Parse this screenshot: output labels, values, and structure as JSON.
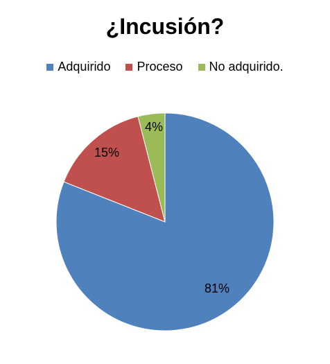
{
  "chart_data": {
    "type": "pie",
    "title": "¿Incusión?",
    "legend_position": "top",
    "categories": [
      "Adquirido",
      "Proceso",
      "No adquirido."
    ],
    "values": [
      81,
      15,
      4
    ],
    "labels": [
      "81%",
      "15%",
      "4%"
    ],
    "colors": [
      "#4F81BD",
      "#C0504D",
      "#9BBB59"
    ]
  }
}
